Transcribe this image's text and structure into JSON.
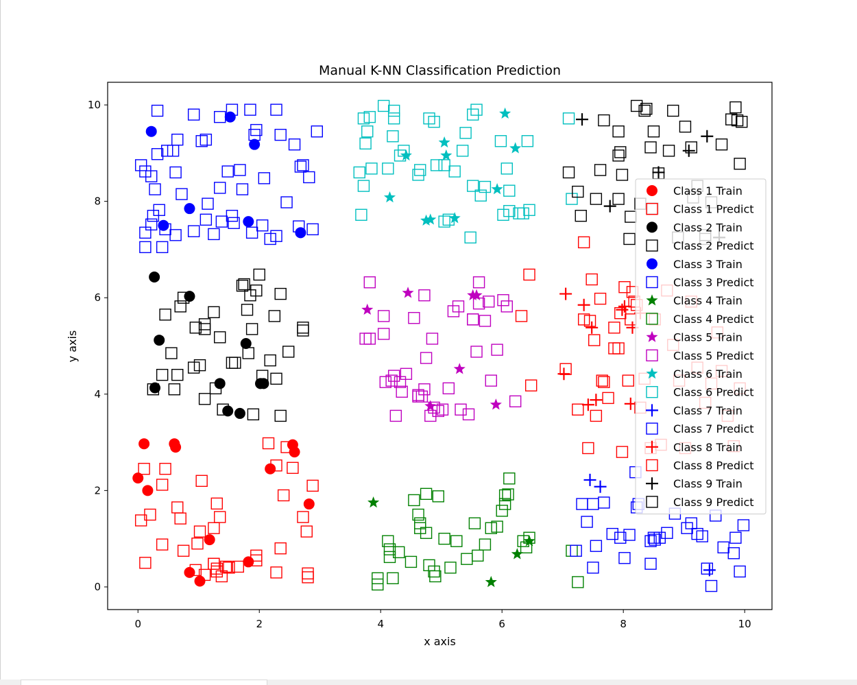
{
  "chart_data": {
    "type": "scatter",
    "title": "Manual K-NN Classification Prediction",
    "xlabel": "x axis",
    "ylabel": "y axis",
    "xlim": [
      -0.5,
      10.45
    ],
    "ylim": [
      -0.47,
      10.47
    ],
    "xticks": [
      "0",
      "2",
      "4",
      "6",
      "8",
      "10"
    ],
    "yticks": [
      "0",
      "2",
      "4",
      "6",
      "8",
      "10"
    ],
    "grid": false,
    "legend_position": "right",
    "series": [
      {
        "name": "Class 1 Train",
        "marker": "circle",
        "color": "#ff0000",
        "x": [
          0.1,
          0.6,
          0.62,
          0.0,
          0.16,
          2.55,
          2.58,
          2.18,
          1.18,
          2.82,
          0.85,
          1.02,
          1.82
        ],
        "y": [
          2.97,
          2.97,
          2.9,
          2.26,
          2.0,
          2.95,
          2.8,
          2.45,
          0.98,
          1.72,
          0.3,
          0.12,
          0.52
        ]
      },
      {
        "name": "Class 1 Predict",
        "marker": "square",
        "color": "#ff0000",
        "x": [
          0.1,
          0.45,
          0.4,
          0.2,
          0.05,
          0.65,
          0.7,
          0.75,
          0.4,
          0.12,
          1.05,
          1.3,
          1.35,
          1.25,
          1.02,
          0.98,
          1.25,
          1.45,
          1.3,
          1.65,
          2.15,
          2.28,
          2.55,
          2.45,
          2.88,
          2.4,
          2.72,
          2.78,
          2.8,
          2.35,
          1.95,
          2.28,
          2.8,
          1.38,
          1.1,
          0.95,
          1.3,
          1.25,
          1.5,
          1.95
        ],
        "y": [
          2.45,
          2.45,
          2.12,
          1.5,
          1.38,
          1.65,
          1.42,
          0.75,
          0.88,
          0.5,
          2.2,
          1.73,
          1.45,
          1.22,
          1.15,
          0.9,
          0.48,
          0.42,
          0.32,
          0.42,
          2.98,
          2.52,
          2.47,
          2.9,
          2.1,
          1.9,
          1.45,
          1.15,
          0.2,
          0.8,
          0.65,
          0.3,
          0.28,
          0.22,
          0.25,
          0.35,
          0.38,
          0.48,
          0.4,
          0.55
        ]
      },
      {
        "name": "Class 2 Train",
        "marker": "circle",
        "color": "#000000",
        "x": [
          0.27,
          0.85,
          0.35,
          0.28,
          1.35,
          1.78,
          2.02,
          2.07,
          1.48,
          1.68
        ],
        "y": [
          6.43,
          6.03,
          5.12,
          4.13,
          4.22,
          5.05,
          4.22,
          4.22,
          3.65,
          3.6
        ]
      },
      {
        "name": "Class 2 Predict",
        "marker": "square",
        "color": "#000000",
        "x": [
          0.75,
          0.7,
          0.45,
          0.55,
          0.65,
          0.4,
          0.25,
          0.6,
          1.1,
          0.95,
          1.25,
          1.1,
          1.35,
          0.92,
          1.02,
          1.28,
          1.1,
          1.4,
          1.55,
          1.8,
          1.72,
          1.85,
          1.95,
          2.0,
          1.88,
          1.82,
          1.6,
          2.35,
          2.25,
          2.48,
          2.72,
          2.72,
          2.18,
          2.28,
          2.05,
          2.35,
          1.9,
          1.75
        ],
        "y": [
          6.0,
          5.82,
          5.65,
          4.85,
          4.4,
          4.4,
          4.1,
          4.1,
          5.45,
          5.38,
          5.7,
          5.35,
          5.18,
          4.55,
          4.6,
          4.12,
          3.9,
          3.68,
          4.65,
          5.75,
          6.25,
          6.05,
          6.15,
          6.48,
          5.35,
          4.85,
          4.65,
          6.08,
          5.62,
          4.88,
          5.38,
          5.32,
          4.7,
          4.32,
          4.38,
          3.55,
          3.58,
          6.28
        ]
      },
      {
        "name": "Class 3 Train",
        "marker": "circle",
        "color": "#0000ff",
        "x": [
          0.22,
          1.52,
          1.92,
          0.85,
          0.42,
          1.82,
          2.68
        ],
        "y": [
          9.45,
          9.75,
          9.18,
          7.85,
          7.5,
          7.58,
          7.35
        ]
      },
      {
        "name": "Class 3 Predict",
        "marker": "square",
        "color": "#0000ff",
        "x": [
          0.32,
          0.65,
          1.05,
          1.35,
          1.55,
          1.85,
          2.28,
          0.58,
          0.48,
          0.32,
          0.05,
          0.12,
          0.22,
          0.62,
          0.28,
          0.72,
          0.35,
          0.25,
          0.12,
          0.22,
          0.45,
          0.62,
          0.4,
          0.12,
          0.92,
          1.12,
          1.15,
          1.48,
          1.68,
          1.72,
          1.35,
          1.12,
          0.92,
          1.25,
          1.55,
          1.95,
          1.92,
          2.08,
          2.35,
          2.58,
          2.68,
          2.72,
          2.95,
          2.82,
          2.45,
          2.28,
          2.18,
          2.05,
          1.88,
          1.58,
          1.38,
          2.65,
          2.88
        ],
        "y": [
          9.88,
          9.28,
          9.25,
          9.75,
          9.9,
          9.9,
          9.9,
          9.05,
          9.05,
          8.98,
          8.75,
          8.62,
          8.52,
          8.6,
          8.25,
          8.15,
          7.82,
          7.7,
          7.35,
          7.52,
          7.42,
          7.3,
          7.05,
          7.05,
          9.8,
          9.28,
          7.95,
          8.62,
          8.65,
          8.25,
          8.28,
          7.62,
          7.38,
          7.32,
          7.7,
          9.48,
          9.38,
          8.48,
          9.38,
          9.18,
          8.72,
          8.75,
          9.45,
          8.5,
          7.98,
          7.28,
          7.22,
          7.5,
          7.35,
          7.55,
          7.58,
          7.48,
          7.42
        ]
      },
      {
        "name": "Class 4 Train",
        "marker": "star",
        "color": "#008000",
        "x": [
          3.88,
          5.82,
          6.45,
          6.25
        ],
        "y": [
          1.75,
          0.1,
          0.95,
          0.68
        ]
      },
      {
        "name": "Class 4 Predict",
        "marker": "square",
        "color": "#008000",
        "x": [
          3.95,
          4.12,
          4.15,
          4.3,
          4.2,
          4.55,
          4.5,
          4.62,
          4.65,
          4.75,
          4.75,
          4.8,
          4.88,
          4.9,
          4.95,
          5.05,
          5.15,
          5.25,
          5.42,
          5.55,
          5.6,
          5.72,
          5.92,
          5.82,
          6.0,
          6.05,
          6.05,
          6.1,
          6.12,
          6.4,
          6.35,
          6.45,
          4.15,
          4.65,
          3.95,
          7.15,
          7.25
        ],
        "y": [
          0.05,
          0.95,
          0.78,
          0.72,
          0.18,
          1.8,
          0.52,
          1.5,
          1.32,
          1.93,
          1.12,
          0.45,
          0.32,
          0.22,
          1.88,
          1.0,
          0.4,
          0.95,
          0.58,
          1.32,
          0.65,
          0.88,
          1.25,
          1.22,
          1.58,
          1.72,
          1.9,
          1.92,
          2.25,
          0.82,
          0.95,
          1.02,
          0.62,
          1.22,
          0.18,
          0.75,
          0.1
        ]
      },
      {
        "name": "Class 5 Train",
        "marker": "star",
        "color": "#bf00bf",
        "x": [
          4.45,
          5.52,
          3.78,
          5.3,
          4.82,
          5.9,
          5.58
        ],
        "y": [
          6.1,
          6.05,
          5.75,
          4.52,
          3.75,
          3.78,
          6.05
        ]
      },
      {
        "name": "Class 5 Predict",
        "marker": "square",
        "color": "#bf00bf",
        "x": [
          3.82,
          4.05,
          4.05,
          4.08,
          4.22,
          4.32,
          4.35,
          4.42,
          4.55,
          4.62,
          4.68,
          4.72,
          4.75,
          4.82,
          4.88,
          4.85,
          4.95,
          5.02,
          5.12,
          5.2,
          5.28,
          5.32,
          5.45,
          5.52,
          5.58,
          5.62,
          5.72,
          5.78,
          5.82,
          5.92,
          6.02,
          6.08,
          6.22,
          4.18,
          3.75,
          3.82,
          4.25,
          4.62,
          4.72,
          5.52,
          5.62
        ],
        "y": [
          6.32,
          5.62,
          5.25,
          4.25,
          4.38,
          4.25,
          4.05,
          4.42,
          5.58,
          3.98,
          3.95,
          6.05,
          4.75,
          3.55,
          3.72,
          5.15,
          3.65,
          3.68,
          4.12,
          5.72,
          5.82,
          3.68,
          3.58,
          5.55,
          4.88,
          5.88,
          5.52,
          5.92,
          4.28,
          4.92,
          5.95,
          5.82,
          3.85,
          4.28,
          5.15,
          5.15,
          3.55,
          3.95,
          4.1,
          5.55,
          6.32
        ]
      },
      {
        "name": "Class 6 Train",
        "marker": "star",
        "color": "#00bfbf",
        "x": [
          4.15,
          4.42,
          4.75,
          5.05,
          5.08,
          5.22,
          5.92,
          6.05,
          6.22,
          4.82
        ],
        "y": [
          8.08,
          8.95,
          7.6,
          9.22,
          8.95,
          7.65,
          8.25,
          9.82,
          9.1,
          7.62
        ]
      },
      {
        "name": "Class 6 Predict",
        "marker": "square",
        "color": "#00bfbf",
        "x": [
          3.72,
          3.78,
          3.82,
          3.75,
          3.72,
          3.65,
          3.68,
          4.05,
          4.22,
          4.22,
          4.2,
          4.32,
          4.12,
          3.85,
          4.38,
          4.62,
          4.65,
          4.8,
          4.88,
          4.92,
          5.05,
          5.12,
          5.22,
          5.35,
          5.4,
          5.52,
          5.58,
          5.65,
          5.72,
          5.98,
          6.08,
          6.02,
          6.12,
          6.35,
          6.28,
          6.42,
          6.12,
          6.45,
          7.1,
          7.15,
          5.48,
          5.52,
          5.05
        ],
        "y": [
          9.72,
          9.45,
          9.75,
          9.2,
          8.32,
          8.6,
          7.72,
          9.98,
          9.72,
          9.88,
          9.35,
          8.95,
          8.68,
          8.68,
          9.05,
          8.55,
          8.65,
          9.72,
          9.65,
          8.75,
          8.75,
          7.62,
          8.62,
          9.05,
          9.42,
          9.8,
          9.9,
          8.12,
          8.3,
          9.25,
          8.68,
          7.72,
          8.22,
          7.75,
          7.75,
          9.25,
          7.8,
          7.82,
          9.72,
          8.05,
          7.25,
          8.32,
          7.58
        ]
      },
      {
        "name": "Class 7 Train",
        "marker": "plus",
        "color": "#0000ff",
        "x": [
          7.45,
          7.62,
          9.42
        ],
        "y": [
          2.22,
          2.08,
          0.35
        ]
      },
      {
        "name": "Class 7 Predict",
        "marker": "square",
        "color": "#0000ff",
        "x": [
          7.22,
          7.32,
          7.5,
          7.68,
          7.82,
          7.95,
          7.55,
          7.4,
          8.1,
          8.2,
          8.45,
          8.52,
          8.6,
          8.72,
          8.85,
          9.05,
          9.12,
          9.22,
          9.3,
          9.38,
          9.45,
          9.52,
          9.65,
          9.82,
          9.92,
          9.98,
          9.85,
          8.22,
          8.25,
          8.45,
          8.5,
          8.02,
          7.5
        ],
        "y": [
          0.75,
          1.72,
          1.72,
          1.75,
          1.1,
          1.02,
          0.85,
          1.35,
          1.08,
          2.38,
          0.48,
          0.98,
          1.02,
          1.12,
          1.52,
          1.22,
          1.32,
          1.1,
          1.05,
          0.38,
          0.02,
          1.48,
          0.82,
          0.7,
          0.32,
          1.28,
          1.02,
          1.65,
          1.72,
          0.95,
          1.02,
          0.6,
          0.4
        ]
      },
      {
        "name": "Class 8 Train",
        "marker": "plus",
        "color": "#ff0000",
        "x": [
          7.05,
          7.35,
          7.48,
          7.02,
          8.15,
          7.98,
          8.28,
          8.02,
          7.42,
          7.55,
          8.12
        ],
        "y": [
          6.08,
          5.85,
          5.38,
          4.42,
          5.38,
          5.75,
          5.68,
          5.82,
          3.78,
          3.88,
          3.8
        ]
      },
      {
        "name": "Class 8 Predict",
        "marker": "square",
        "color": "#ff0000",
        "x": [
          6.32,
          6.45,
          6.48,
          7.05,
          7.35,
          7.45,
          7.48,
          7.62,
          7.68,
          7.75,
          7.85,
          7.92,
          7.98,
          8.02,
          8.08,
          8.12,
          8.18,
          8.28,
          8.35,
          8.45,
          8.52,
          8.62,
          8.72,
          8.82,
          8.92,
          9.02,
          9.12,
          9.22,
          9.35,
          9.45,
          9.55,
          9.62,
          9.72,
          9.82,
          9.92,
          7.35,
          7.42,
          7.55,
          7.65,
          7.85,
          7.95,
          8.22,
          7.25,
          7.52,
          8.15
        ],
        "y": [
          5.62,
          6.48,
          4.18,
          4.52,
          7.15,
          5.52,
          6.38,
          5.98,
          4.25,
          3.92,
          5.38,
          4.95,
          2.8,
          6.22,
          4.28,
          5.55,
          5.92,
          3.72,
          4.32,
          2.88,
          5.55,
          2.95,
          6.15,
          5.02,
          4.28,
          2.88,
          5.92,
          4.55,
          3.82,
          4.22,
          5.28,
          4.48,
          3.55,
          2.92,
          4.12,
          5.55,
          2.88,
          3.55,
          4.28,
          4.95,
          5.68,
          5.85,
          3.68,
          5.12,
          6.12
        ]
      },
      {
        "name": "Class 9 Train",
        "marker": "plus",
        "color": "#000000",
        "x": [
          7.32,
          9.38,
          9.08,
          7.78,
          8.58,
          9.58
        ],
        "y": [
          9.7,
          9.35,
          9.05,
          7.9,
          8.6,
          7.25
        ]
      },
      {
        "name": "Class 9 Predict",
        "marker": "square",
        "color": "#000000",
        "x": [
          7.3,
          7.1,
          7.25,
          7.55,
          7.62,
          7.68,
          7.92,
          7.95,
          7.92,
          7.98,
          7.92,
          8.1,
          8.12,
          8.22,
          8.35,
          8.38,
          8.45,
          8.5,
          8.58,
          8.75,
          8.82,
          8.9,
          9.02,
          9.12,
          9.22,
          9.35,
          9.45,
          9.62,
          9.78,
          9.85,
          9.88,
          9.95,
          9.92,
          8.28,
          8.48,
          9.15,
          9.35
        ],
        "y": [
          7.7,
          8.6,
          8.2,
          8.05,
          8.65,
          9.68,
          9.45,
          9.02,
          8.95,
          8.55,
          8.05,
          7.22,
          7.68,
          9.98,
          9.88,
          9.92,
          9.12,
          9.45,
          8.58,
          9.05,
          9.88,
          7.25,
          9.55,
          9.12,
          8.32,
          7.22,
          7.98,
          9.18,
          9.7,
          9.95,
          9.68,
          9.65,
          8.78,
          7.95,
          7.85,
          8.08,
          7.3
        ]
      }
    ]
  }
}
